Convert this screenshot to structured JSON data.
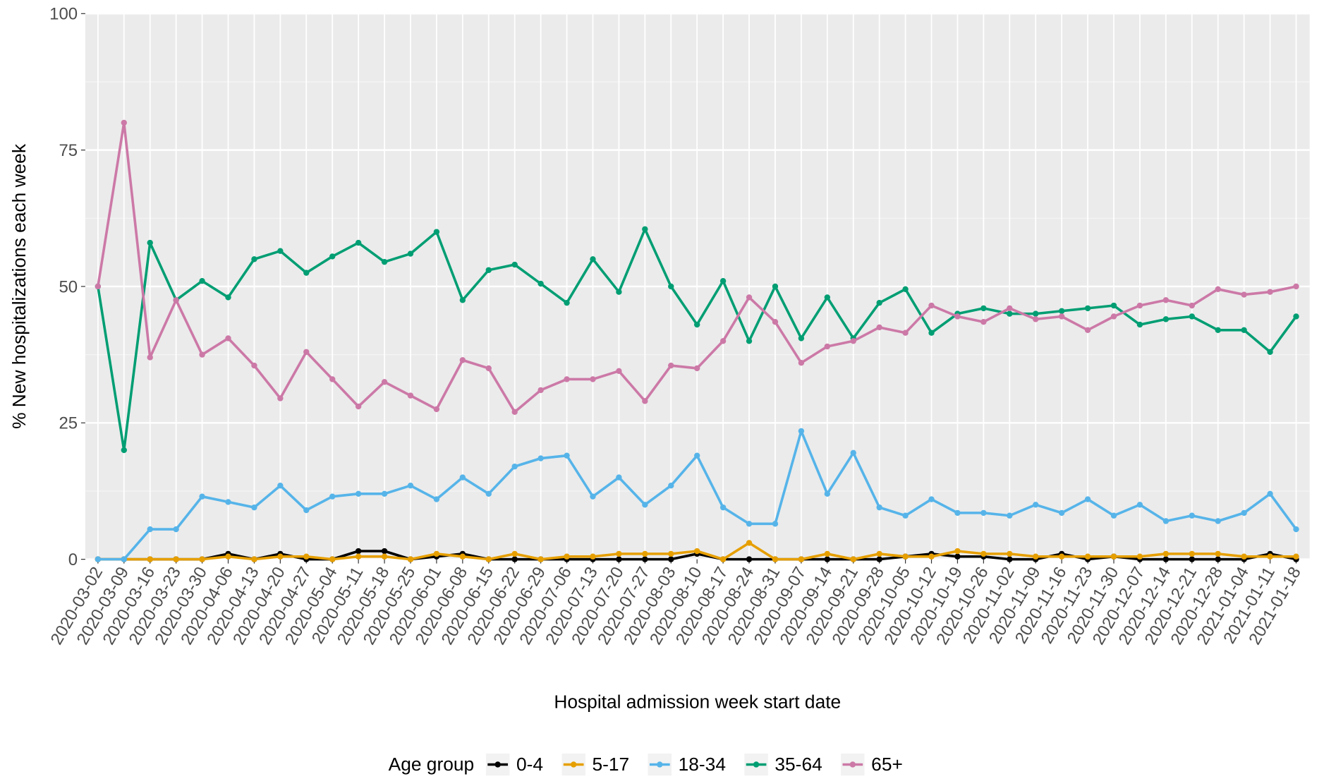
{
  "chart_data": {
    "type": "line",
    "x_label": "Hospital admission week start date",
    "y_label": "% New hospitalizations each week",
    "legend_title": "Age group",
    "legend_position": "bottom",
    "grid": true,
    "ylim": [
      0,
      100
    ],
    "yticks": [
      0,
      25,
      50,
      75,
      100
    ],
    "categories": [
      "2020-03-02",
      "2020-03-09",
      "2020-03-16",
      "2020-03-23",
      "2020-03-30",
      "2020-04-06",
      "2020-04-13",
      "2020-04-20",
      "2020-04-27",
      "2020-05-04",
      "2020-05-11",
      "2020-05-18",
      "2020-05-25",
      "2020-06-01",
      "2020-06-08",
      "2020-06-15",
      "2020-06-22",
      "2020-06-29",
      "2020-07-06",
      "2020-07-13",
      "2020-07-20",
      "2020-07-27",
      "2020-08-03",
      "2020-08-10",
      "2020-08-17",
      "2020-08-24",
      "2020-08-31",
      "2020-09-07",
      "2020-09-14",
      "2020-09-21",
      "2020-09-28",
      "2020-10-05",
      "2020-10-12",
      "2020-10-19",
      "2020-10-26",
      "2020-11-02",
      "2020-11-09",
      "2020-11-16",
      "2020-11-23",
      "2020-11-30",
      "2020-12-07",
      "2020-12-14",
      "2020-12-21",
      "2020-12-28",
      "2021-01-04",
      "2021-01-11",
      "2021-01-18"
    ],
    "series": [
      {
        "name": "0-4",
        "color": "#000000",
        "values": [
          0,
          0,
          0,
          0,
          0,
          1,
          0,
          1,
          0,
          0,
          1.5,
          1.5,
          0,
          0.5,
          1,
          0,
          0,
          0,
          0,
          0,
          0,
          0,
          0,
          1,
          0,
          0,
          0,
          0,
          0,
          0,
          0,
          0.5,
          1,
          0.5,
          0.5,
          0,
          0,
          1,
          0,
          0.5,
          0,
          0,
          0,
          0,
          0,
          1,
          0
        ]
      },
      {
        "name": "5-17",
        "color": "#E69F00",
        "values": [
          0,
          0,
          0,
          0,
          0,
          0.5,
          0,
          0.5,
          0.5,
          0,
          0.5,
          0.5,
          0,
          1,
          0.5,
          0,
          1,
          0,
          0.5,
          0.5,
          1,
          1,
          1,
          1.5,
          0,
          3,
          0,
          0,
          1,
          0,
          1,
          0.5,
          0.5,
          1.5,
          1,
          1,
          0.5,
          0.5,
          0.5,
          0.5,
          0.5,
          1,
          1,
          1,
          0.5,
          0.5,
          0.5
        ]
      },
      {
        "name": "18-34",
        "color": "#56B4E9",
        "values": [
          0,
          0,
          5.5,
          5.5,
          11.5,
          10.5,
          9.5,
          13.5,
          9,
          11.5,
          12,
          12,
          13.5,
          11,
          15,
          12,
          17,
          18.5,
          19,
          11.5,
          15,
          10,
          13.5,
          19,
          9.5,
          6.5,
          6.5,
          23.5,
          12,
          19.5,
          9.5,
          8,
          11,
          8.5,
          8.5,
          8,
          10,
          8.5,
          11,
          8,
          10,
          7,
          8,
          7,
          8.5,
          12,
          5.5
        ]
      },
      {
        "name": "35-64",
        "color": "#009E73",
        "values": [
          50,
          20,
          58,
          47.5,
          51,
          48,
          55,
          56.5,
          52.5,
          55.5,
          58,
          54.5,
          56,
          60,
          47.5,
          53,
          54,
          50.5,
          47,
          55,
          49,
          60.5,
          50,
          43,
          51,
          40,
          50,
          40.5,
          48,
          40.5,
          47,
          49.5,
          41.5,
          45,
          46,
          45,
          45,
          45.5,
          46,
          46.5,
          43,
          44,
          44.5,
          42,
          42,
          38,
          44.5
        ]
      },
      {
        "name": "65+",
        "color": "#CC79A7",
        "values": [
          50,
          80,
          37,
          47.5,
          37.5,
          40.5,
          35.5,
          29.5,
          38,
          33,
          28,
          32.5,
          30,
          27.5,
          36.5,
          35,
          27,
          31,
          33,
          33,
          34.5,
          29,
          35.5,
          35,
          40,
          48,
          43.5,
          36,
          39,
          40,
          42.5,
          41.5,
          46.5,
          44.5,
          43.5,
          46,
          44,
          44.5,
          42,
          44.5,
          46.5,
          47.5,
          46.5,
          49.5,
          48.5,
          49,
          50
        ]
      }
    ]
  }
}
